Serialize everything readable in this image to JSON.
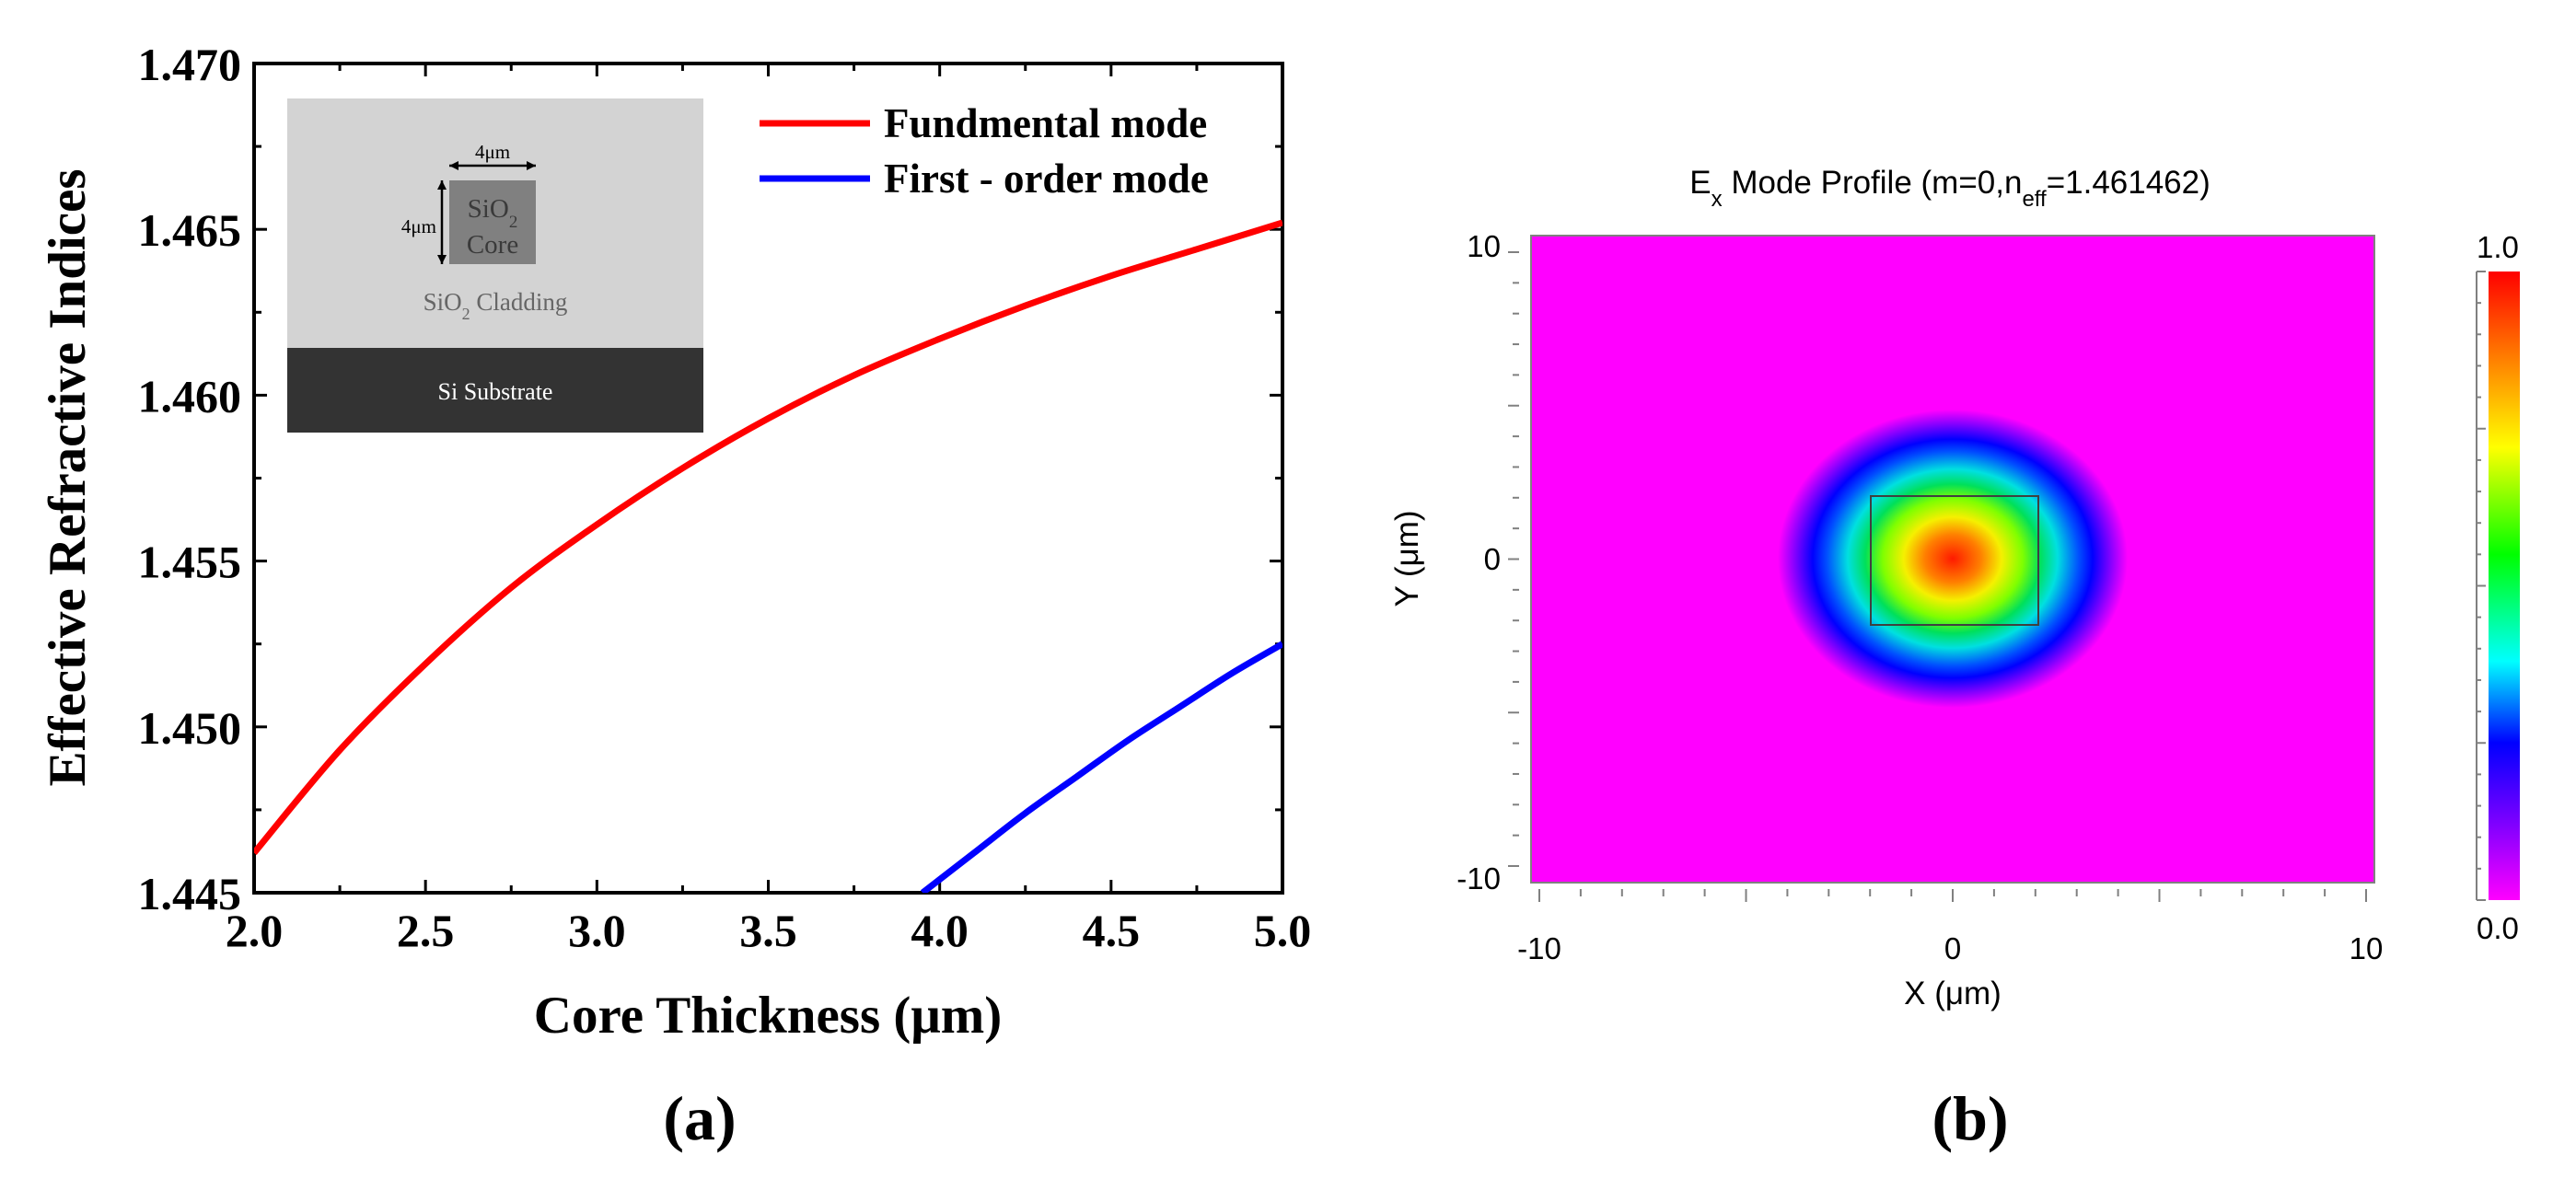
{
  "panel_labels": {
    "a": "(a)",
    "b": "(b)"
  },
  "colors": {
    "fundamental": "#ff0000",
    "first_order": "#0000ff",
    "axis": "#000000",
    "field_background": "#ff00ff",
    "cladding": "#d3d3d3",
    "core": "#808080",
    "substrate": "#333333"
  },
  "inset": {
    "width_label": "4μm",
    "height_label": "4μm",
    "core_label_line1": "SiO",
    "core_label_sub": "2",
    "core_label_line2": "Core",
    "cladding_label": "SiO",
    "cladding_label_sub": "2",
    "cladding_label_rest": " Cladding",
    "substrate_label": "Si Substrate"
  },
  "chart_data": [
    {
      "type": "line",
      "xlabel": "Core Thickness (μm)",
      "ylabel": "Effective Refractive Indices",
      "xlim": [
        2.0,
        5.0
      ],
      "ylim": [
        1.445,
        1.47
      ],
      "xticks": [
        2.0,
        2.5,
        3.0,
        3.5,
        4.0,
        4.5,
        5.0
      ],
      "xtick_labels": [
        "2.0",
        "2.5",
        "3.0",
        "3.5",
        "4.0",
        "4.5",
        "5.0"
      ],
      "yticks": [
        1.445,
        1.45,
        1.455,
        1.46,
        1.465,
        1.47
      ],
      "ytick_labels": [
        "1.445",
        "1.450",
        "1.455",
        "1.460",
        "1.465",
        "1.470"
      ],
      "legend_position": "top-right",
      "series": [
        {
          "name": "Fundmental mode",
          "x": [
            2.0,
            2.25,
            2.5,
            2.75,
            3.0,
            3.25,
            3.5,
            3.75,
            4.0,
            4.25,
            4.5,
            4.75,
            5.0
          ],
          "y": [
            1.4462,
            1.4493,
            1.4519,
            1.4542,
            1.4561,
            1.4578,
            1.4593,
            1.4606,
            1.4617,
            1.4627,
            1.4636,
            1.4644,
            1.4652
          ]
        },
        {
          "name": "First - order mode",
          "x": [
            3.95,
            4.1,
            4.25,
            4.4,
            4.55,
            4.7,
            4.85,
            5.0
          ],
          "y": [
            1.445,
            1.4462,
            1.4474,
            1.4485,
            1.4496,
            1.4506,
            1.4516,
            1.4525
          ]
        }
      ]
    },
    {
      "type": "heatmap",
      "title_main": "E",
      "title_sub_x": "x",
      "title_mid": " Mode Profile (m=0,n",
      "title_sub_eff": "eff",
      "title_end": "=1.461462)",
      "xlabel": "X (μm)",
      "ylabel": "Y (μm)",
      "xlim": [
        -10,
        10
      ],
      "ylim": [
        -10,
        10
      ],
      "xtick_labels": [
        "-10",
        "0",
        "10"
      ],
      "ytick_labels": [
        "10",
        "0",
        "-10"
      ],
      "core_box": {
        "x": [
          -2,
          2
        ],
        "y": [
          -2,
          2
        ]
      },
      "peak_center": [
        0,
        0
      ],
      "colorbar": {
        "min": 0.0,
        "max": 1.0,
        "min_label": "0.0",
        "max_label": "1.0"
      }
    }
  ]
}
